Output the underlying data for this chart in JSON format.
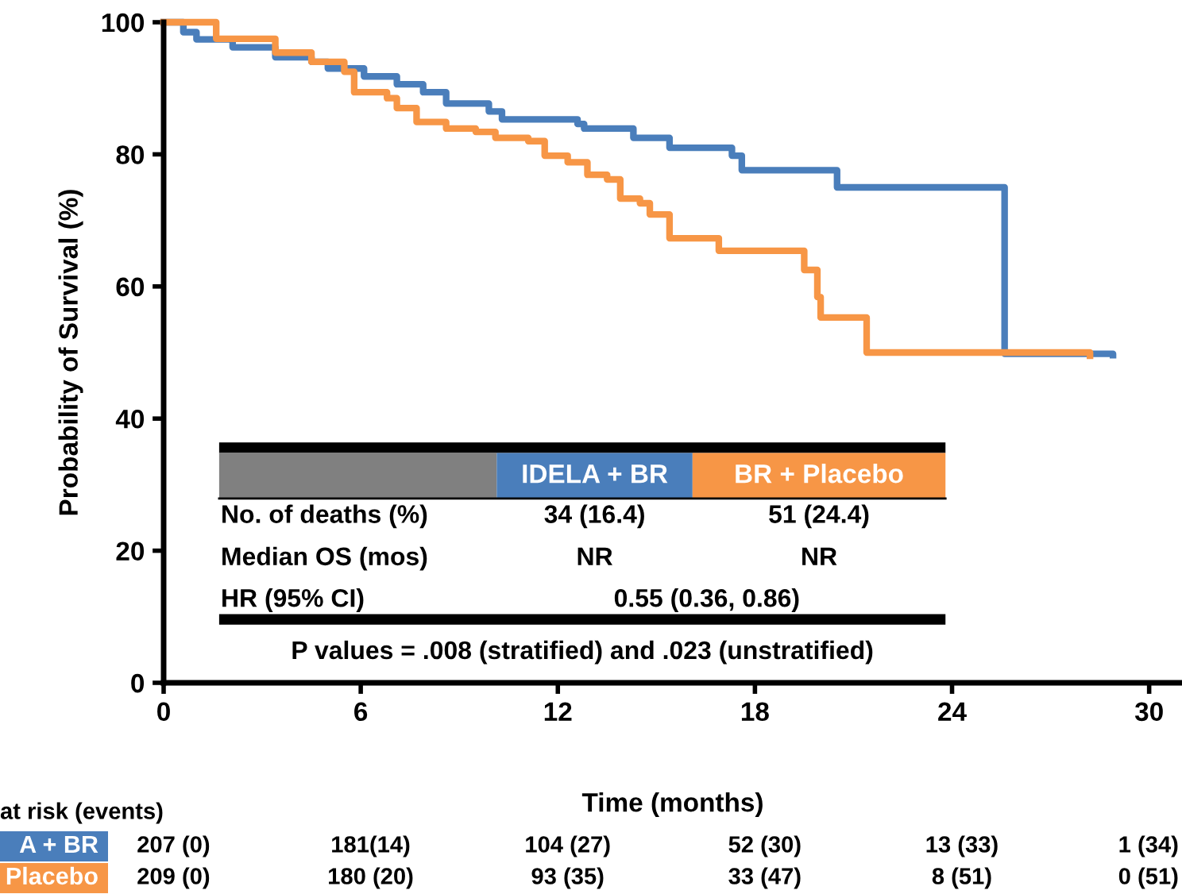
{
  "chart_data": {
    "type": "step",
    "xlabel": "Time (months)",
    "ylabel": "Probability of Survival (%)",
    "xlim": [
      0,
      31
    ],
    "ylim": [
      0,
      100
    ],
    "xticks": [
      0,
      6,
      12,
      18,
      24,
      30
    ],
    "yticks": [
      0,
      20,
      40,
      60,
      80,
      100
    ],
    "grid": false,
    "legend": false,
    "marker": "none",
    "line_style": "solid",
    "series": [
      {
        "name": "IDELA + BR",
        "color": "#4a7ebb",
        "x": [
          0,
          0.6,
          1.0,
          2.1,
          3.4,
          4.5,
          5.0,
          6.1,
          7.1,
          7.9,
          8.6,
          9.9,
          10.3,
          12.6,
          12.8,
          14.3,
          15.4,
          17.3,
          17.6,
          20.5,
          25.6,
          28.9
        ],
        "values": [
          100,
          98.5,
          97.4,
          96.2,
          94.7,
          94,
          93,
          91.8,
          90.6,
          89.4,
          87.7,
          86.5,
          85.3,
          84.6,
          83.9,
          82.5,
          81,
          79.8,
          77.6,
          75,
          49.8,
          49.6
        ]
      },
      {
        "name": "BR + Placebo",
        "color": "#f79646",
        "x": [
          0,
          1.6,
          3.4,
          4.5,
          5.5,
          5.8,
          6.8,
          7.1,
          7.7,
          8.6,
          9.5,
          10.1,
          11.1,
          11.6,
          12.3,
          12.9,
          13.5,
          13.9,
          14.5,
          14.8,
          15.4,
          16.9,
          19.5,
          19.9,
          20.0,
          21.4,
          28.2
        ],
        "values": [
          100,
          97.5,
          95.4,
          94,
          92.5,
          89.4,
          88.5,
          87,
          84.9,
          83.9,
          83.4,
          82.5,
          82,
          79.8,
          78.8,
          76.9,
          76.2,
          73.3,
          72.6,
          70.9,
          67.3,
          65.4,
          62.5,
          58.4,
          55.3,
          50,
          49.5
        ]
      }
    ],
    "annotations": [
      "No. of deaths (%)",
      "34 (16.4)",
      "51 (24.4)",
      "Median OS (mos)",
      "NR",
      "NR",
      "HR (95% CI)",
      "0.55 (0.36, 0.86)",
      "P values = .008 (stratified) and .023 (unstratified)",
      "at risk (events)",
      "A + BR",
      "Placebo",
      "207 (0)",
      "181(14)",
      "104 (27)",
      "52 (30)",
      "13 (33)",
      "1 (34)",
      "209 (0)",
      "180 (20)",
      "93 (35)",
      "33 (47)",
      "8 (51)",
      "0 (51)"
    ]
  }
}
